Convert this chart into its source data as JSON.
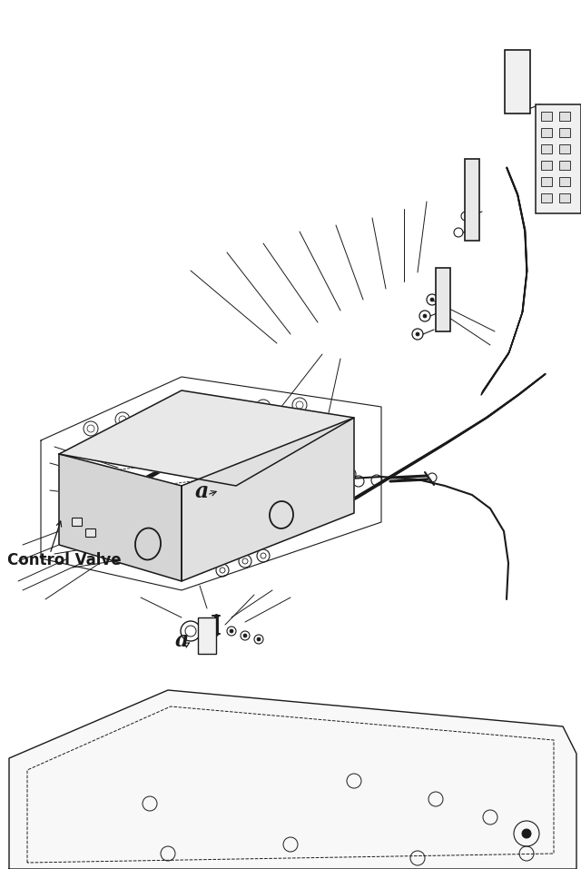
{
  "bg_color": "#ffffff",
  "line_color": "#1a1a1a",
  "figsize": [
    6.4,
    9.57
  ],
  "dpi": 100,
  "control_valve_label": "Control Valve",
  "label_a1": "a",
  "label_a2": "a"
}
